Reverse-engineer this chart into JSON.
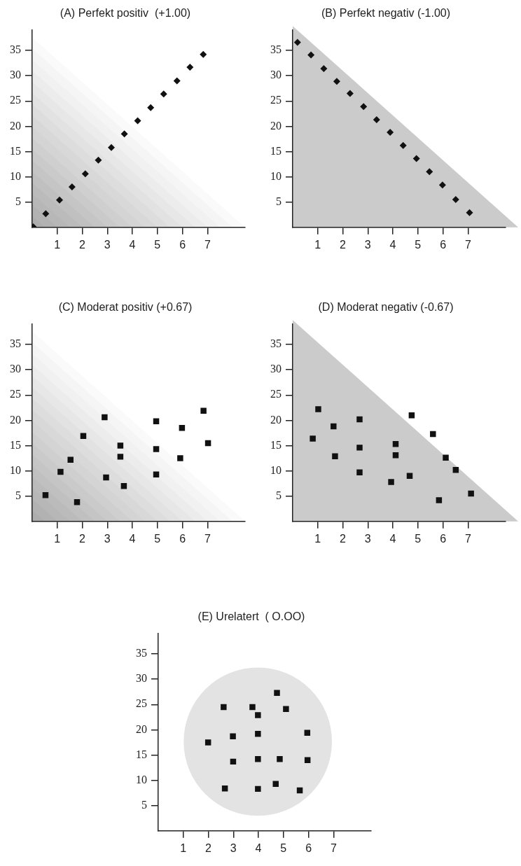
{
  "chart_data": [
    {
      "type": "scatter",
      "title": "(A) Perfekt positiv  (+1.00)",
      "x": [
        0.04,
        0.54,
        1.09,
        1.59,
        2.12,
        2.64,
        3.16,
        3.68,
        4.21,
        4.73,
        5.25,
        5.78,
        6.3,
        6.83
      ],
      "values": [
        0.1,
        2.7,
        5.4,
        8.0,
        10.6,
        13.3,
        15.8,
        18.5,
        21.1,
        23.7,
        26.4,
        29.0,
        31.7,
        34.2
      ],
      "color": "#111111",
      "marker": "diamond",
      "xlim": [
        0,
        8.5
      ],
      "ylim": [
        0,
        39
      ],
      "xticks": [
        1,
        2,
        3,
        4,
        5,
        6,
        7
      ],
      "yticks": [
        5,
        10,
        15,
        20,
        25,
        30,
        35
      ],
      "grid": false
    },
    {
      "type": "scatter",
      "title": "(B) Perfekt negativ (-1.00)",
      "x": [
        0.19,
        0.73,
        1.24,
        1.76,
        2.29,
        2.83,
        3.35,
        3.89,
        4.41,
        4.94,
        5.46,
        5.98,
        6.51,
        7.06
      ],
      "values": [
        36.6,
        34.1,
        31.4,
        28.9,
        26.5,
        23.9,
        21.3,
        18.8,
        16.2,
        13.6,
        11.0,
        8.4,
        5.5,
        2.9
      ],
      "color": "#111111",
      "marker": "diamond",
      "xlim": [
        0,
        8.5
      ],
      "ylim": [
        0,
        39
      ],
      "xticks": [
        1,
        2,
        3,
        4,
        5,
        6,
        7
      ],
      "yticks": [
        5,
        10,
        15,
        20,
        25,
        30,
        35
      ],
      "grid": false
    },
    {
      "type": "scatter",
      "title": "(C) Moderat positiv (+0.67)",
      "x": [
        0.53,
        1.79,
        1.13,
        1.53,
        2.04,
        2.89,
        2.95,
        3.52,
        3.52,
        3.66,
        4.95,
        4.95,
        4.95,
        5.98,
        5.91,
        6.84,
        7.02
      ],
      "values": [
        5.2,
        3.8,
        9.8,
        12.2,
        16.9,
        20.6,
        8.7,
        15.0,
        12.8,
        7.0,
        19.8,
        14.3,
        9.3,
        18.5,
        12.5,
        21.9,
        15.5
      ],
      "color": "#111111",
      "marker": "square",
      "xlim": [
        0,
        8.5
      ],
      "ylim": [
        0,
        39
      ],
      "xticks": [
        1,
        2,
        3,
        4,
        5,
        6,
        7
      ],
      "yticks": [
        5,
        10,
        15,
        20,
        25,
        30,
        35
      ],
      "grid": false
    },
    {
      "type": "scatter",
      "title": "(D) Moderat negativ (-0.67)",
      "x": [
        1.02,
        0.8,
        1.63,
        1.69,
        2.67,
        2.67,
        2.67,
        4.11,
        4.11,
        3.93,
        4.67,
        4.75,
        5.6,
        6.11,
        6.51,
        5.84,
        7.12
      ],
      "values": [
        22.2,
        16.4,
        18.8,
        12.9,
        20.2,
        14.6,
        9.7,
        15.3,
        13.1,
        7.8,
        9.0,
        21.0,
        17.3,
        12.6,
        10.2,
        4.2,
        5.5
      ],
      "color": "#111111",
      "marker": "square",
      "xlim": [
        0,
        8.5
      ],
      "ylim": [
        0,
        39
      ],
      "xticks": [
        1,
        2,
        3,
        4,
        5,
        6,
        7
      ],
      "yticks": [
        5,
        10,
        15,
        20,
        25,
        30,
        35
      ],
      "grid": false
    },
    {
      "type": "scatter",
      "title": "(E) Urelatert  ( O.OO)",
      "x": [
        4.74,
        2.61,
        3.76,
        3.98,
        5.1,
        1.99,
        2.98,
        3.98,
        5.95,
        2.99,
        3.98,
        4.85,
        5.96,
        2.66,
        3.98,
        4.69,
        5.65
      ],
      "values": [
        27.3,
        24.5,
        24.5,
        22.9,
        24.1,
        17.5,
        18.7,
        19.2,
        19.4,
        13.7,
        14.2,
        14.2,
        14.0,
        8.4,
        8.3,
        9.3,
        8.0
      ],
      "color": "#111111",
      "marker": "square",
      "xlim": [
        0,
        8.5
      ],
      "ylim": [
        0,
        39
      ],
      "xticks": [
        1,
        2,
        3,
        4,
        5,
        6,
        7
      ],
      "yticks": [
        5,
        10,
        15,
        20,
        25,
        30,
        35
      ],
      "grid": false
    }
  ]
}
